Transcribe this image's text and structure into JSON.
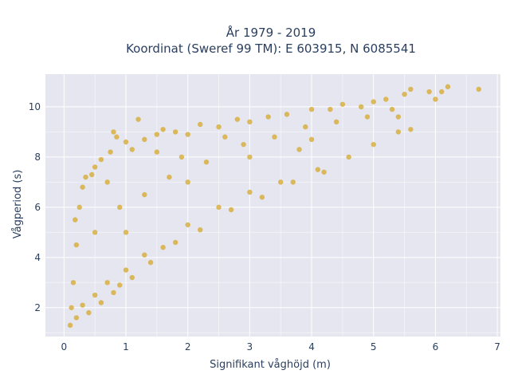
{
  "chart_data": {
    "type": "scatter",
    "title_line1": "År 1979 - 2019",
    "title_line2": "Koordinat (Sweref 99 TM): E 603915, N 6085541",
    "xlabel": "Signifikant våghöjd (m)",
    "ylabel": "Vågperiod (s)",
    "xlim": [
      -0.3,
      7.05
    ],
    "ylim": [
      0.85,
      11.3
    ],
    "xticks": [
      0,
      1,
      2,
      3,
      4,
      5,
      6,
      7
    ],
    "yticks": [
      2,
      4,
      6,
      8,
      10
    ],
    "grid": true,
    "marker_color": "#D4A520",
    "plot_background": "#E5E6EF",
    "series": [
      {
        "points": [
          [
            0.1,
            1.3
          ],
          [
            0.12,
            2.0
          ],
          [
            0.15,
            3.0
          ],
          [
            0.2,
            4.5
          ],
          [
            0.18,
            5.5
          ],
          [
            0.25,
            6.0
          ],
          [
            0.3,
            6.8
          ],
          [
            0.35,
            7.2
          ],
          [
            0.45,
            7.3
          ],
          [
            0.5,
            7.6
          ],
          [
            0.6,
            7.9
          ],
          [
            0.75,
            8.2
          ],
          [
            0.85,
            8.8
          ],
          [
            1.0,
            8.6
          ],
          [
            1.1,
            8.3
          ],
          [
            1.3,
            8.7
          ],
          [
            1.5,
            8.9
          ],
          [
            1.6,
            9.1
          ],
          [
            1.8,
            9.0
          ],
          [
            2.0,
            8.9
          ],
          [
            2.2,
            9.3
          ],
          [
            2.5,
            9.2
          ],
          [
            2.8,
            9.5
          ],
          [
            3.0,
            9.4
          ],
          [
            3.3,
            9.6
          ],
          [
            3.6,
            9.7
          ],
          [
            4.0,
            9.9
          ],
          [
            4.3,
            9.9
          ],
          [
            4.5,
            10.1
          ],
          [
            4.8,
            10.0
          ],
          [
            5.0,
            10.2
          ],
          [
            5.2,
            10.3
          ],
          [
            5.5,
            10.5
          ],
          [
            5.6,
            10.7
          ],
          [
            5.9,
            10.6
          ],
          [
            6.0,
            10.3
          ],
          [
            6.1,
            10.6
          ],
          [
            6.2,
            10.8
          ],
          [
            6.7,
            10.7
          ],
          [
            5.4,
            9.6
          ],
          [
            5.3,
            9.9
          ],
          [
            5.6,
            9.1
          ],
          [
            4.2,
            7.4
          ],
          [
            3.5,
            7.0
          ],
          [
            3.0,
            6.6
          ],
          [
            2.5,
            6.0
          ],
          [
            2.0,
            5.3
          ],
          [
            1.6,
            4.4
          ],
          [
            1.3,
            4.1
          ],
          [
            1.0,
            3.5
          ],
          [
            0.7,
            3.0
          ],
          [
            0.5,
            2.5
          ],
          [
            0.3,
            2.1
          ],
          [
            0.2,
            1.6
          ],
          [
            0.4,
            1.8
          ],
          [
            0.6,
            2.2
          ],
          [
            0.8,
            2.6
          ],
          [
            0.9,
            2.9
          ],
          [
            1.1,
            3.2
          ],
          [
            1.4,
            3.8
          ],
          [
            1.8,
            4.6
          ],
          [
            2.2,
            5.1
          ],
          [
            2.7,
            5.9
          ],
          [
            3.2,
            6.4
          ],
          [
            3.7,
            7.0
          ],
          [
            4.1,
            7.5
          ],
          [
            4.6,
            8.0
          ],
          [
            5.0,
            8.5
          ],
          [
            5.4,
            9.0
          ],
          [
            0.8,
            9.0
          ],
          [
            1.2,
            9.5
          ],
          [
            1.5,
            8.2
          ],
          [
            0.5,
            5.0
          ],
          [
            0.9,
            6.0
          ],
          [
            1.3,
            6.5
          ],
          [
            1.7,
            7.2
          ],
          [
            2.3,
            7.8
          ],
          [
            2.9,
            8.5
          ],
          [
            3.4,
            8.8
          ],
          [
            3.9,
            9.2
          ],
          [
            4.4,
            9.4
          ],
          [
            4.9,
            9.6
          ],
          [
            1.0,
            5.0
          ],
          [
            2.0,
            7.0
          ],
          [
            3.0,
            8.0
          ],
          [
            4.0,
            8.7
          ],
          [
            0.7,
            7.0
          ],
          [
            1.9,
            8.0
          ],
          [
            2.6,
            8.8
          ],
          [
            3.8,
            8.3
          ]
        ]
      }
    ]
  }
}
